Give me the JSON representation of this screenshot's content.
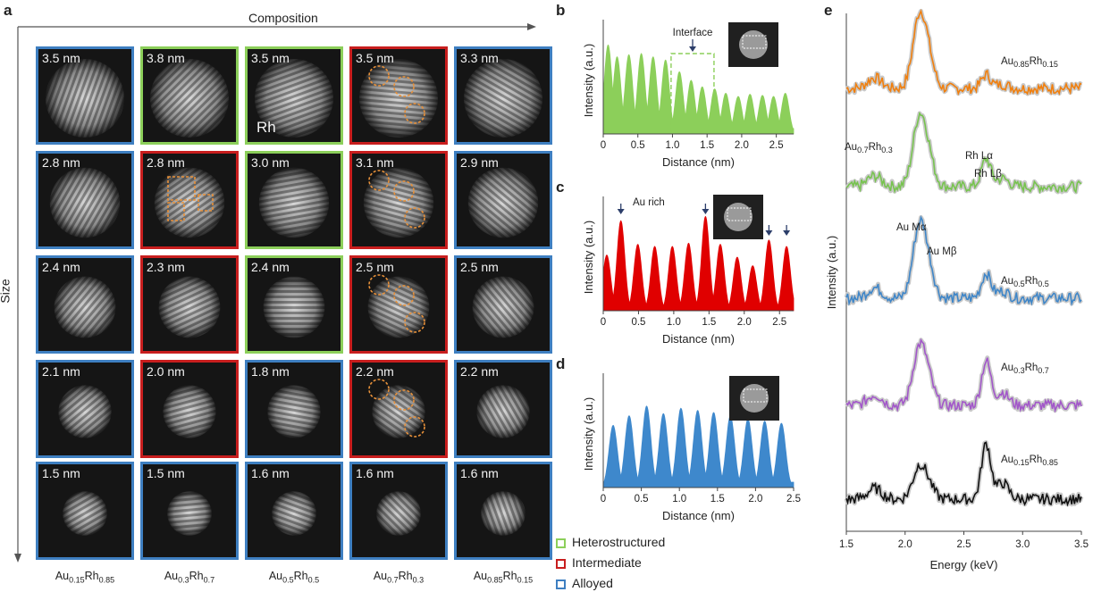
{
  "panels": {
    "a": "a",
    "b": "b",
    "c": "c",
    "d": "d",
    "e": "e"
  },
  "grid": {
    "axis_composition": "Composition",
    "axis_size": "Size",
    "rh_label": "Rh",
    "rows": [
      [
        {
          "size": "3.5 nm",
          "cls": "a"
        },
        {
          "size": "3.8 nm",
          "cls": "h"
        },
        {
          "size": "3.5 nm",
          "cls": "h"
        },
        {
          "size": "3.5 nm",
          "cls": "i"
        },
        {
          "size": "3.3 nm",
          "cls": "a"
        }
      ],
      [
        {
          "size": "2.8 nm",
          "cls": "a"
        },
        {
          "size": "2.8 nm",
          "cls": "i"
        },
        {
          "size": "3.0 nm",
          "cls": "h"
        },
        {
          "size": "3.1 nm",
          "cls": "i"
        },
        {
          "size": "2.9 nm",
          "cls": "a"
        }
      ],
      [
        {
          "size": "2.4 nm",
          "cls": "a"
        },
        {
          "size": "2.3 nm",
          "cls": "i"
        },
        {
          "size": "2.4 nm",
          "cls": "h"
        },
        {
          "size": "2.5 nm",
          "cls": "i"
        },
        {
          "size": "2.5 nm",
          "cls": "a"
        }
      ],
      [
        {
          "size": "2.1 nm",
          "cls": "a"
        },
        {
          "size": "2.0 nm",
          "cls": "i"
        },
        {
          "size": "1.8 nm",
          "cls": "a"
        },
        {
          "size": "2.2 nm",
          "cls": "i"
        },
        {
          "size": "2.2 nm",
          "cls": "a"
        }
      ],
      [
        {
          "size": "1.5 nm",
          "cls": "a"
        },
        {
          "size": "1.5 nm",
          "cls": "a"
        },
        {
          "size": "1.6 nm",
          "cls": "a"
        },
        {
          "size": "1.6 nm",
          "cls": "a"
        },
        {
          "size": "1.6 nm",
          "cls": "a"
        }
      ]
    ],
    "columns": [
      {
        "a": "Au",
        "as": "0.15",
        "b": "Rh",
        "bs": "0.85"
      },
      {
        "a": "Au",
        "as": "0.3",
        "b": "Rh",
        "bs": "0.7"
      },
      {
        "a": "Au",
        "as": "0.5",
        "b": "Rh",
        "bs": "0.5"
      },
      {
        "a": "Au",
        "as": "0.7",
        "b": "Rh",
        "bs": "0.3"
      },
      {
        "a": "Au",
        "as": "0.85",
        "b": "Rh",
        "bs": "0.15"
      }
    ]
  },
  "legend": [
    {
      "label": "Heterostructured",
      "color": "#8ccf5a"
    },
    {
      "label": "Intermediate",
      "color": "#c81e1e"
    },
    {
      "label": "Alloyed",
      "color": "#3e7fc1"
    }
  ],
  "chart_data": [
    {
      "id": "b",
      "type": "area",
      "color": "#8ccf5a",
      "xlabel": "Distance (nm)",
      "ylabel": "Intensity (a.u.)",
      "xlim": [
        0,
        2.75
      ],
      "ylim": [
        0,
        1
      ],
      "xticks": [
        "0",
        "0.5",
        "1.0",
        "1.5",
        "2.0",
        "2.5"
      ],
      "peaks_x": [
        0.07,
        0.2,
        0.37,
        0.55,
        0.72,
        0.9,
        1.1,
        1.27,
        1.43,
        1.61,
        1.77,
        1.95,
        2.12,
        2.3,
        2.46,
        2.63
      ],
      "peaks_y": [
        0.83,
        0.72,
        0.74,
        0.75,
        0.72,
        0.69,
        0.58,
        0.5,
        0.44,
        0.42,
        0.38,
        0.35,
        0.37,
        0.36,
        0.35,
        0.38
      ],
      "annotation": "Interface"
    },
    {
      "id": "c",
      "type": "area",
      "color": "#e00000",
      "xlabel": "Distance (nm)",
      "ylabel": "Intensity (a.u.)",
      "xlim": [
        0,
        2.7
      ],
      "ylim": [
        0,
        1
      ],
      "xticks": [
        "0",
        "0.5",
        "1.0",
        "1.5",
        "2.0",
        "2.5"
      ],
      "peaks_x": [
        0.05,
        0.25,
        0.49,
        0.73,
        0.98,
        1.21,
        1.45,
        1.66,
        1.9,
        2.12,
        2.35,
        2.6
      ],
      "peaks_y": [
        0.52,
        0.84,
        0.62,
        0.6,
        0.6,
        0.63,
        0.88,
        0.62,
        0.5,
        0.42,
        0.66,
        0.6
      ],
      "annotation": "Au rich"
    },
    {
      "id": "d",
      "type": "area",
      "color": "#3e88cc",
      "xlabel": "Distance (nm)",
      "ylabel": "Intensity (a.u.)",
      "xlim": [
        0,
        2.5
      ],
      "ylim": [
        0,
        1
      ],
      "xticks": [
        "0",
        "0.5",
        "1.0",
        "1.5",
        "2.0",
        "2.5"
      ],
      "peaks_x": [
        0.13,
        0.34,
        0.57,
        0.79,
        1.02,
        1.24,
        1.45,
        1.67,
        1.9,
        2.12,
        2.34
      ],
      "peaks_y": [
        0.58,
        0.67,
        0.76,
        0.69,
        0.74,
        0.72,
        0.7,
        0.67,
        0.64,
        0.62,
        0.6
      ]
    },
    {
      "id": "e",
      "type": "line",
      "xlabel": "Energy (keV)",
      "ylabel": "Intensity (a.u.)",
      "xlim": [
        1.5,
        3.5
      ],
      "xticks": [
        "1.5",
        "2.0",
        "2.5",
        "3.0",
        "3.5"
      ],
      "series": [
        {
          "name": "Au0.85Rh0.15",
          "a": "Au",
          "as": "0.85",
          "b": "Rh",
          "bs": "0.15",
          "color": "#f07f0e",
          "au": 1.0,
          "rh": 0.25
        },
        {
          "name": "Au0.7Rh0.3",
          "a": "Au",
          "as": "0.7",
          "b": "Rh",
          "bs": "0.3",
          "color": "#77c34f",
          "au": 0.95,
          "rh": 0.5
        },
        {
          "name": "Au0.5Rh0.5",
          "a": "Au",
          "as": "0.5",
          "b": "Rh",
          "bs": "0.5",
          "color": "#3f86c8",
          "au": 1.0,
          "rh": 0.45
        },
        {
          "name": "Au0.3Rh0.7",
          "a": "Au",
          "as": "0.3",
          "b": "Rh",
          "bs": "0.7",
          "color": "#a257c9",
          "au": 0.8,
          "rh": 0.8
        },
        {
          "name": "Au0.15Rh0.85",
          "a": "Au",
          "as": "0.15",
          "b": "Rh",
          "bs": "0.85",
          "color": "#111111",
          "au": 0.45,
          "rh": 1.0
        }
      ],
      "annotations": [
        "Rh Lα",
        "Rh Lβ",
        "Au Mα",
        "Au Mβ"
      ]
    }
  ]
}
